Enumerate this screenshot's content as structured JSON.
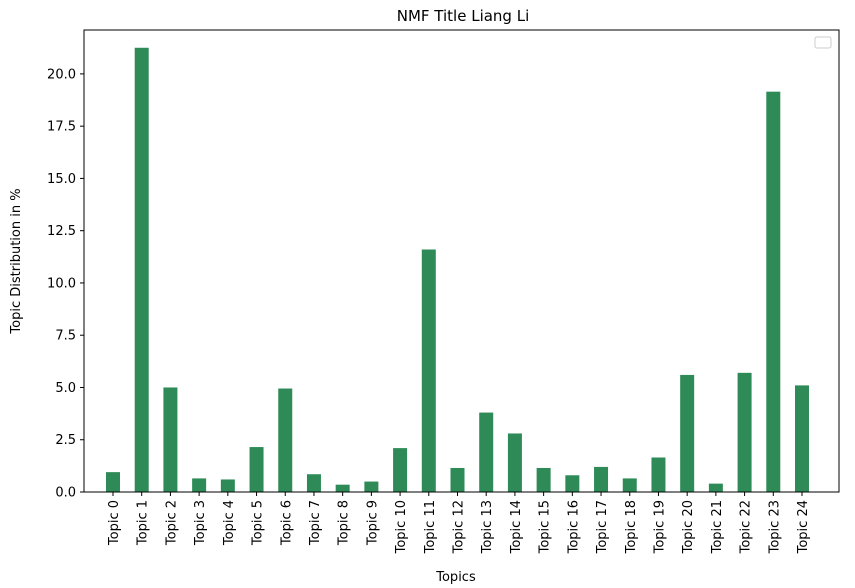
{
  "chart_data": {
    "type": "bar",
    "title": "NMF Title Liang Li",
    "xlabel": "Topics",
    "ylabel": "Topic Distribution in %",
    "categories": [
      "Topic 0",
      "Topic 1",
      "Topic 2",
      "Topic 3",
      "Topic 4",
      "Topic 5",
      "Topic 6",
      "Topic 7",
      "Topic 8",
      "Topic 9",
      "Topic 10",
      "Topic 11",
      "Topic 12",
      "Topic 13",
      "Topic 14",
      "Topic 15",
      "Topic 16",
      "Topic 17",
      "Topic 18",
      "Topic 19",
      "Topic 20",
      "Topic 21",
      "Topic 22",
      "Topic 23",
      "Topic 24"
    ],
    "values": [
      0.95,
      21.25,
      5.0,
      0.65,
      0.6,
      2.15,
      4.95,
      0.85,
      0.35,
      0.5,
      2.1,
      11.6,
      1.15,
      3.8,
      2.8,
      1.15,
      0.8,
      1.2,
      0.65,
      1.65,
      5.6,
      0.4,
      5.7,
      19.15,
      5.1
    ],
    "yticks": [
      "0.0",
      "2.5",
      "5.0",
      "7.5",
      "10.0",
      "12.5",
      "15.0",
      "17.5",
      "20.0"
    ],
    "ylim": [
      0,
      22.1
    ],
    "bar_color": "#2e8b57",
    "legend": "top-right, empty",
    "grid": false
  }
}
